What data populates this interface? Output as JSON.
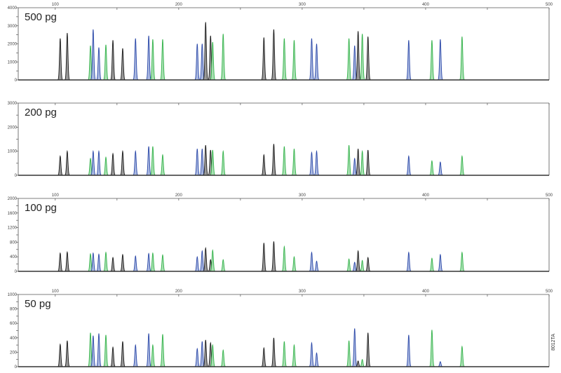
{
  "figure_id": "8012TA",
  "dye_colors": {
    "black": "#1a1a1a",
    "blue": "#2b48a8",
    "green": "#33b24a"
  },
  "chart_data": [
    {
      "type": "line",
      "title": "500 pg",
      "xlim": [
        70,
        500
      ],
      "xticks": [
        100,
        200,
        300,
        400,
        500
      ],
      "show_x_labels": true,
      "ylim": [
        0,
        4000
      ],
      "yticks": [
        0,
        1000,
        2000,
        3000,
        4000
      ],
      "peaks": {
        "x": [
          104,
          109.7,
          128.5,
          130.7,
          135.3,
          141,
          146.7,
          154.6,
          165,
          175.7,
          179,
          187,
          215,
          219,
          221.8,
          225.8,
          227.5,
          236,
          269,
          277,
          285.5,
          293.5,
          307.7,
          311.7,
          337.9,
          342.5,
          345.3,
          348.7,
          353.3,
          386.3,
          405.1,
          411.9,
          429.5
        ],
        "dye": [
          "black",
          "black",
          "green",
          "blue",
          "blue",
          "green",
          "black",
          "black",
          "blue",
          "blue",
          "green",
          "green",
          "blue",
          "blue",
          "black",
          "black",
          "green",
          "green",
          "black",
          "black",
          "green",
          "green",
          "blue",
          "blue",
          "green",
          "blue",
          "black",
          "green",
          "black",
          "blue",
          "green",
          "blue",
          "green"
        ],
        "y": [
          2300,
          2600,
          1900,
          2800,
          1800,
          1950,
          2200,
          1750,
          2300,
          2450,
          2250,
          2250,
          2000,
          2000,
          3200,
          2450,
          2100,
          2550,
          2350,
          2800,
          2300,
          2200,
          2300,
          2000,
          2300,
          1900,
          2700,
          2550,
          2400,
          2200,
          2200,
          2250,
          2400
        ]
      }
    },
    {
      "type": "line",
      "title": "200 pg",
      "xlim": [
        70,
        500
      ],
      "xticks": [
        100,
        200,
        300,
        400,
        500
      ],
      "show_x_labels": false,
      "ylim": [
        0,
        3000
      ],
      "yticks": [
        0,
        1000,
        2000,
        3000
      ],
      "peaks": {
        "x": [
          104,
          109.7,
          128.5,
          130.7,
          135.3,
          141,
          146.7,
          154.6,
          165,
          175.7,
          179,
          187,
          215,
          219,
          221.8,
          225.8,
          227.5,
          236,
          269,
          277,
          285.5,
          293.5,
          307.7,
          311.7,
          337.9,
          342.5,
          345.3,
          348.7,
          353.3,
          386.3,
          405.1,
          411.9,
          429.5
        ],
        "dye": [
          "black",
          "black",
          "green",
          "blue",
          "blue",
          "green",
          "black",
          "black",
          "blue",
          "blue",
          "green",
          "green",
          "blue",
          "blue",
          "black",
          "black",
          "green",
          "green",
          "black",
          "black",
          "green",
          "green",
          "blue",
          "blue",
          "green",
          "blue",
          "black",
          "green",
          "black",
          "blue",
          "green",
          "blue",
          "green"
        ],
        "y": [
          800,
          1000,
          700,
          1000,
          1000,
          750,
          900,
          1000,
          1000,
          1200,
          1200,
          850,
          1100,
          1100,
          1250,
          1050,
          1050,
          1000,
          850,
          1300,
          1200,
          1100,
          950,
          1000,
          1250,
          700,
          1100,
          1000,
          1050,
          800,
          600,
          550,
          800
        ]
      }
    },
    {
      "type": "line",
      "title": "100 pg",
      "xlim": [
        70,
        500
      ],
      "xticks": [
        100,
        200,
        300,
        400,
        500
      ],
      "show_x_labels": true,
      "ylim": [
        0,
        2000
      ],
      "yticks": [
        0,
        400,
        800,
        1200,
        1600,
        2000
      ],
      "peaks": {
        "x": [
          104,
          109.7,
          128.5,
          130.7,
          135.3,
          141,
          146.7,
          154.6,
          165,
          175.7,
          179,
          187,
          215,
          219,
          221.8,
          225.8,
          227.5,
          236,
          269,
          277,
          285.5,
          293.5,
          307.7,
          311.7,
          337.9,
          342.5,
          345.3,
          348.7,
          353.3,
          386.3,
          405.1,
          411.9,
          429.5
        ],
        "dye": [
          "black",
          "black",
          "green",
          "blue",
          "blue",
          "green",
          "black",
          "black",
          "blue",
          "blue",
          "green",
          "green",
          "blue",
          "blue",
          "black",
          "black",
          "green",
          "green",
          "black",
          "black",
          "green",
          "green",
          "blue",
          "blue",
          "green",
          "blue",
          "black",
          "green",
          "black",
          "blue",
          "green",
          "blue",
          "green"
        ],
        "y": [
          500,
          530,
          480,
          500,
          470,
          520,
          380,
          460,
          420,
          490,
          500,
          450,
          400,
          560,
          640,
          320,
          580,
          320,
          780,
          820,
          680,
          400,
          520,
          280,
          340,
          250,
          560,
          300,
          380,
          520,
          360,
          460,
          520
        ]
      }
    },
    {
      "type": "line",
      "title": "50 pg",
      "xlim": [
        70,
        500
      ],
      "xticks": [
        100,
        200,
        300,
        400,
        500
      ],
      "show_x_labels": true,
      "ylim": [
        0,
        1000
      ],
      "yticks": [
        0,
        200,
        400,
        600,
        800,
        1000
      ],
      "peaks": {
        "x": [
          104,
          109.7,
          128.5,
          130.7,
          135.3,
          141,
          146.7,
          154.6,
          165,
          175.7,
          179,
          187,
          215,
          219,
          221.8,
          225.8,
          227.5,
          236,
          269,
          277,
          285.5,
          293.5,
          307.7,
          311.7,
          337.9,
          342.5,
          345.3,
          348.7,
          353.3,
          386.3,
          405.1,
          411.9,
          429.5
        ],
        "dye": [
          "black",
          "black",
          "green",
          "blue",
          "blue",
          "green",
          "black",
          "black",
          "blue",
          "blue",
          "green",
          "green",
          "blue",
          "blue",
          "black",
          "black",
          "green",
          "green",
          "black",
          "black",
          "green",
          "green",
          "blue",
          "blue",
          "green",
          "blue",
          "black",
          "green",
          "black",
          "blue",
          "green",
          "blue",
          "green"
        ],
        "y": [
          310,
          360,
          470,
          430,
          460,
          440,
          270,
          350,
          300,
          460,
          300,
          450,
          250,
          350,
          370,
          330,
          300,
          230,
          260,
          400,
          350,
          300,
          330,
          190,
          360,
          530,
          80,
          100,
          470,
          440,
          510,
          70,
          280
        ]
      }
    }
  ]
}
